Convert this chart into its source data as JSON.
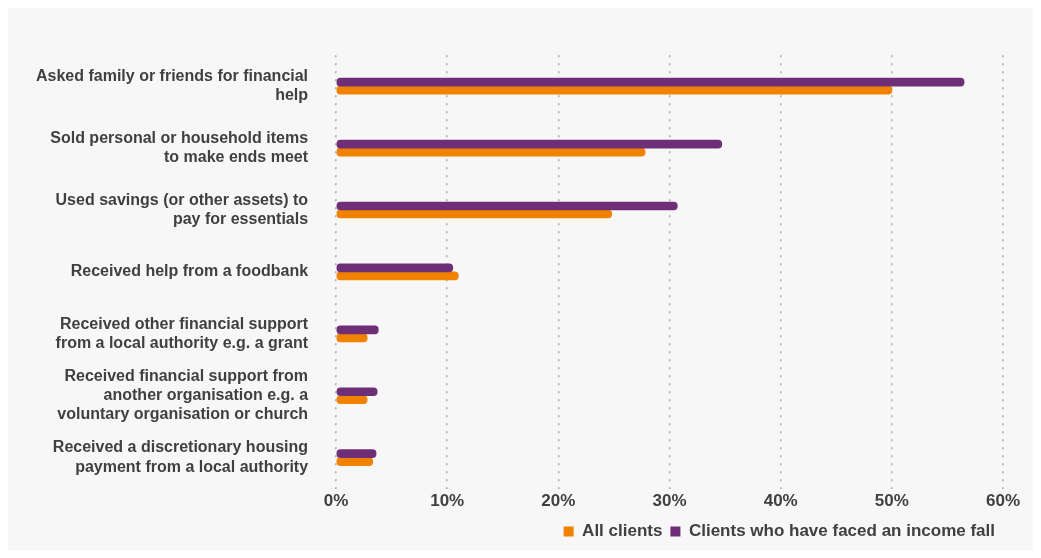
{
  "chart_data": {
    "type": "bar",
    "orientation": "horizontal",
    "categories": [
      "Asked family or friends for financial help",
      "Sold personal or household items to make ends meet",
      "Used savings (or other assets) to pay for essentials",
      "Received help from a foodbank",
      "Received other financial support from a local authority e.g. a grant",
      "Received financial support from another organisation e.g. a voluntary organisation or church",
      "Received a discretionary housing payment from a local authority"
    ],
    "series": [
      {
        "name": "Clients who have faced an income fall",
        "color": "#6e2f77",
        "values": [
          56.5,
          34.7,
          30.7,
          10.5,
          3.8,
          3.7,
          3.6
        ]
      },
      {
        "name": "All clients",
        "color": "#f08200",
        "values": [
          50,
          27.8,
          24.8,
          11,
          2.8,
          2.8,
          3.3
        ]
      }
    ],
    "xlim": [
      0,
      60
    ],
    "xticks": [
      {
        "value": 0,
        "label": "0%"
      },
      {
        "value": 10,
        "label": "10%"
      },
      {
        "value": 20,
        "label": "20%"
      },
      {
        "value": 30,
        "label": "30%"
      },
      {
        "value": 40,
        "label": "40%"
      },
      {
        "value": 50,
        "label": "50%"
      },
      {
        "value": 60,
        "label": "60%"
      }
    ],
    "grid": "x",
    "legend": "bottom right"
  }
}
